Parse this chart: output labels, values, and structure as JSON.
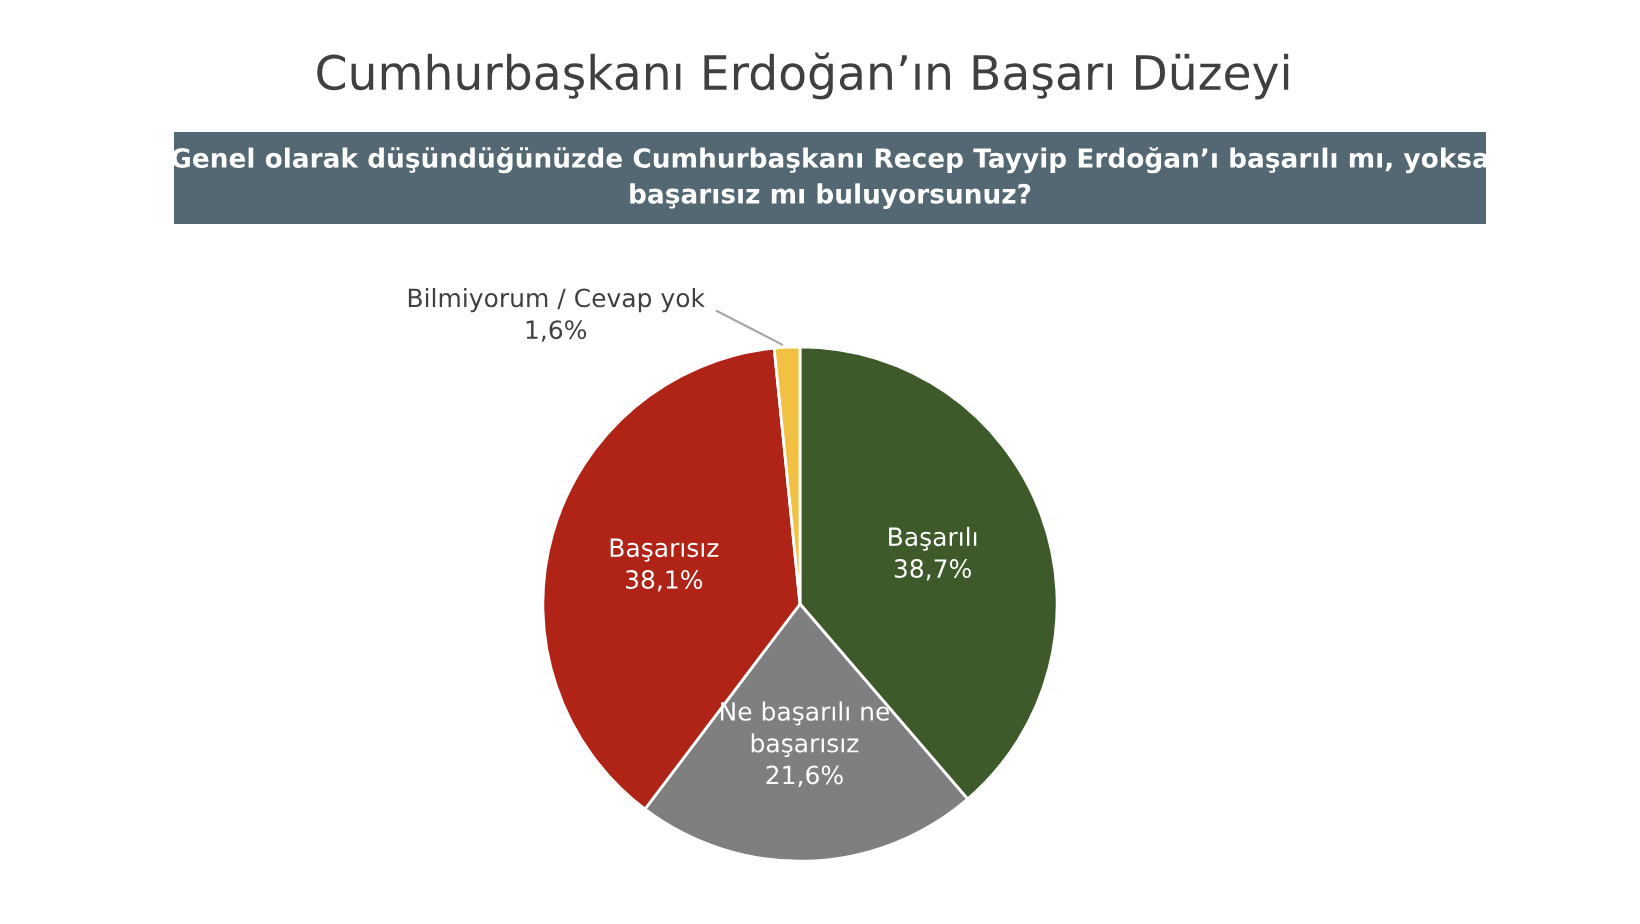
{
  "chart_data": {
    "type": "pie",
    "title": "Cumhurbaşkanı Erdoğan’ın Başarı Düzeyi",
    "subtitle": "Genel olarak düşündüğünüzde Cumhurbaşkanı Recep Tayyip Erdoğan’ı başarılı mı, yoksa\nbaşarısız mı buluyorsunuz?",
    "categories": [
      "Başarılı",
      "Ne başarılı ne\nbaşarısız",
      "Başarısız",
      "Bilmiyorum / Cevap yok"
    ],
    "values": [
      38.7,
      21.6,
      38.1,
      1.6
    ],
    "value_labels": [
      "38,7%",
      "21,6%",
      "38,1%",
      "1,6%"
    ],
    "colors": [
      "#3f5a2a",
      "#7f7f7f",
      "#b02418",
      "#f2c043"
    ],
    "legend": false
  }
}
